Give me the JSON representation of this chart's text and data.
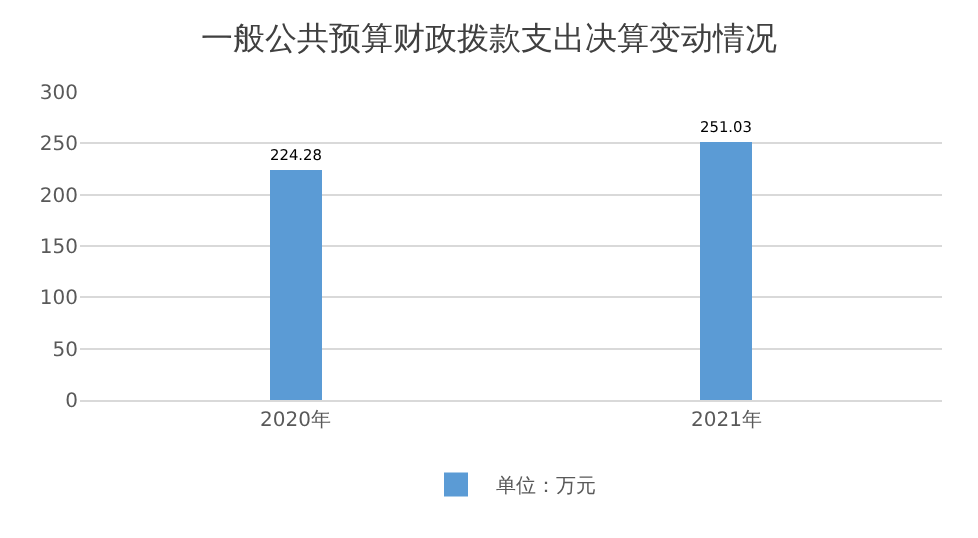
{
  "chart_data": {
    "type": "bar",
    "title": "一般公共预算财政拨款支出决算变动情况",
    "categories": [
      "2020年",
      "2021年"
    ],
    "series": [
      {
        "name": "单位：万元",
        "color": "#5b9bd5",
        "values": [
          224.28,
          251.03
        ]
      }
    ],
    "ylim": [
      0,
      300
    ],
    "yticks": [
      0,
      50,
      100,
      150,
      200,
      250,
      300
    ],
    "grid": "y",
    "legend": "bottom",
    "data_labels": true
  }
}
